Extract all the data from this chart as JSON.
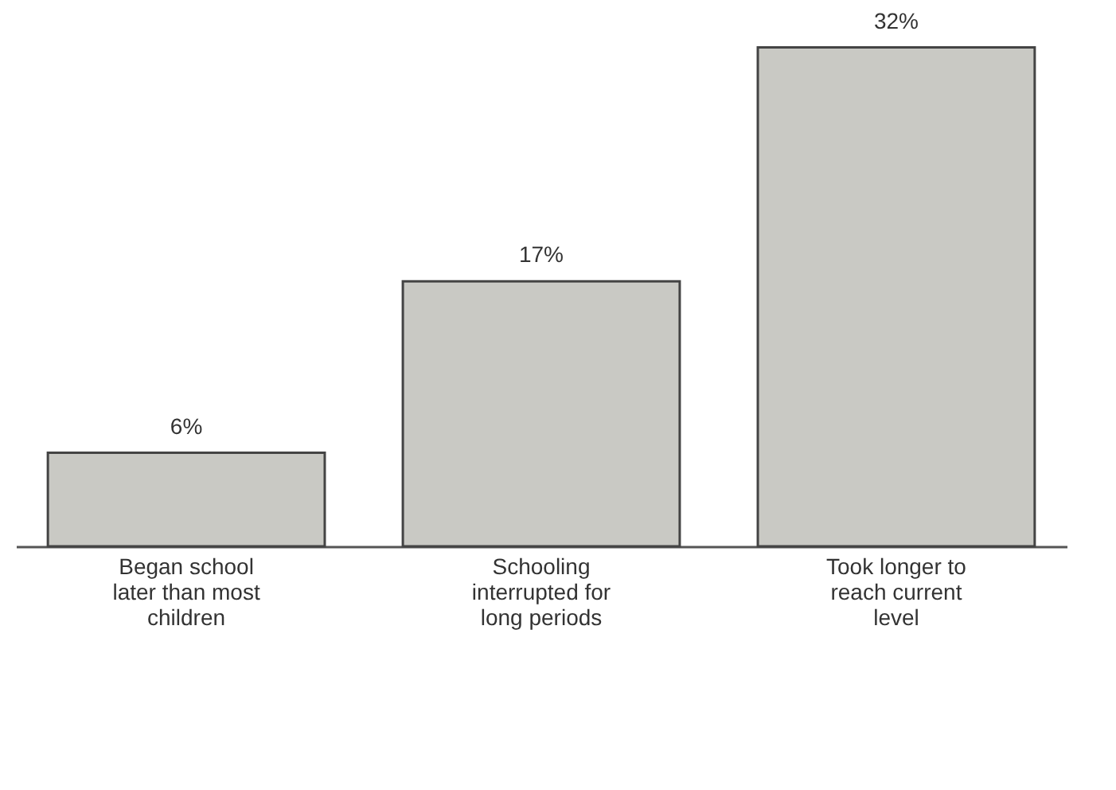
{
  "chart_data": {
    "type": "bar",
    "categories": [
      "Began school later than most children",
      "Schooling interrupted for long periods",
      "Took longer to reach current level"
    ],
    "values": [
      6,
      17,
      32
    ],
    "value_labels": [
      "6%",
      "17%",
      "32%"
    ],
    "color": "#c9c9c4",
    "grid": false
  }
}
